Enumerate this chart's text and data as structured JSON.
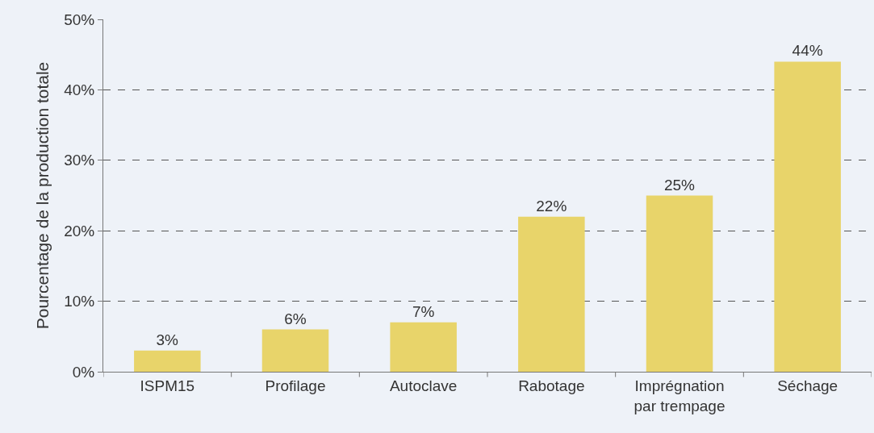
{
  "chart_data": {
    "type": "bar",
    "ylabel": "Pourcentage de la production totale",
    "categories": [
      "ISPM15",
      "Profilage",
      "Autoclave",
      "Rabotage",
      "Imprégnation par trempage",
      "Séchage"
    ],
    "values": [
      3,
      6,
      7,
      22,
      25,
      44
    ],
    "value_labels": [
      "3%",
      "6%",
      "7%",
      "22%",
      "25%",
      "44%"
    ],
    "color": "#e8d46a",
    "ylim": [
      0,
      50
    ],
    "yticks": [
      {
        "value": 0,
        "label": "0%"
      },
      {
        "value": 10,
        "label": "10%"
      },
      {
        "value": 20,
        "label": "20%"
      },
      {
        "value": 30,
        "label": "30%"
      },
      {
        "value": 40,
        "label": "40%"
      },
      {
        "value": 50,
        "label": "50%"
      }
    ],
    "grid": "y",
    "legend": false
  }
}
